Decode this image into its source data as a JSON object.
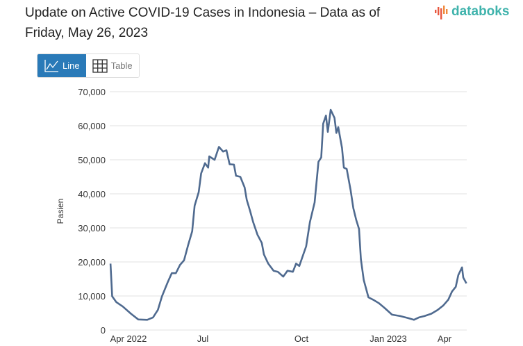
{
  "title": "Update on Active COVID-19 Cases in Indonesia – Data as of Friday, May 26, 2023",
  "logo": {
    "text": "databoks",
    "bar_color": "#e8573f",
    "text_color": "#3fb3ac"
  },
  "view_toggle": {
    "line_label": "Line",
    "line_icon": "line-chart-icon",
    "table_label": "Table",
    "table_icon": "table-grid-icon",
    "active": "Line",
    "active_color": "#2a7ab8"
  },
  "chart_data": {
    "type": "line",
    "ylabel": "Pasien",
    "ylim": [
      0,
      70000
    ],
    "yticks": [
      0,
      10000,
      20000,
      30000,
      40000,
      50000,
      60000,
      70000
    ],
    "ytick_labels": [
      "0",
      "10,000",
      "20,000",
      "30,000",
      "40,000",
      "50,000",
      "60,000",
      "70,000"
    ],
    "xticks": [
      {
        "date": "2022-04-01",
        "label": "Apr 2022"
      },
      {
        "date": "2022-07-01",
        "label": "Jul"
      },
      {
        "date": "2022-10-01",
        "label": "Oct"
      },
      {
        "date": "2023-01-01",
        "label": "Jan 2023"
      },
      {
        "date": "2023-04-01",
        "label": "Apr"
      }
    ],
    "grid": true,
    "line_color": "#4f6a8f",
    "points": [
      [
        "2022-03-10",
        19500
      ],
      [
        "2022-03-12",
        9900
      ],
      [
        "2022-03-17",
        8200
      ],
      [
        "2022-03-25",
        6900
      ],
      [
        "2022-04-04",
        4800
      ],
      [
        "2022-04-13",
        3100
      ],
      [
        "2022-04-24",
        3000
      ],
      [
        "2022-05-01",
        3700
      ],
      [
        "2022-05-07",
        5900
      ],
      [
        "2022-05-12",
        9900
      ],
      [
        "2022-05-19",
        14000
      ],
      [
        "2022-05-24",
        16700
      ],
      [
        "2022-05-29",
        16700
      ],
      [
        "2022-06-03",
        19100
      ],
      [
        "2022-06-08",
        20500
      ],
      [
        "2022-06-13",
        24900
      ],
      [
        "2022-06-18",
        29000
      ],
      [
        "2022-06-21",
        36500
      ],
      [
        "2022-06-26",
        40500
      ],
      [
        "2022-06-29",
        46000
      ],
      [
        "2022-07-03",
        49000
      ],
      [
        "2022-07-06",
        47700
      ],
      [
        "2022-07-07",
        51000
      ],
      [
        "2022-07-12",
        50000
      ],
      [
        "2022-07-16",
        53800
      ],
      [
        "2022-07-20",
        52400
      ],
      [
        "2022-07-23",
        52800
      ],
      [
        "2022-07-26",
        48700
      ],
      [
        "2022-07-30",
        48600
      ],
      [
        "2022-08-01",
        45300
      ],
      [
        "2022-08-05",
        45000
      ],
      [
        "2022-08-09",
        41900
      ],
      [
        "2022-08-11",
        38200
      ],
      [
        "2022-08-14",
        35100
      ],
      [
        "2022-08-17",
        31700
      ],
      [
        "2022-08-21",
        28000
      ],
      [
        "2022-08-25",
        25600
      ],
      [
        "2022-08-27",
        22200
      ],
      [
        "2022-08-31",
        19500
      ],
      [
        "2022-09-05",
        17400
      ],
      [
        "2022-09-09",
        17100
      ],
      [
        "2022-09-14",
        15700
      ],
      [
        "2022-09-18",
        17400
      ],
      [
        "2022-09-23",
        17100
      ],
      [
        "2022-09-26",
        19500
      ],
      [
        "2022-09-29",
        18800
      ],
      [
        "2022-10-03",
        22200
      ],
      [
        "2022-10-06",
        24600
      ],
      [
        "2022-10-10",
        31700
      ],
      [
        "2022-10-15",
        37500
      ],
      [
        "2022-10-19",
        49400
      ],
      [
        "2022-10-22",
        50700
      ],
      [
        "2022-10-24",
        60600
      ],
      [
        "2022-10-27",
        63000
      ],
      [
        "2022-10-29",
        58200
      ],
      [
        "2022-11-01",
        64700
      ],
      [
        "2022-11-05",
        62300
      ],
      [
        "2022-11-07",
        57900
      ],
      [
        "2022-11-09",
        59600
      ],
      [
        "2022-11-13",
        53500
      ],
      [
        "2022-11-15",
        47700
      ],
      [
        "2022-11-18",
        47300
      ],
      [
        "2022-11-22",
        41200
      ],
      [
        "2022-11-25",
        35800
      ],
      [
        "2022-11-28",
        32400
      ],
      [
        "2022-12-01",
        29700
      ],
      [
        "2022-12-03",
        20800
      ],
      [
        "2022-12-06",
        14700
      ],
      [
        "2022-12-11",
        9600
      ],
      [
        "2022-12-16",
        8900
      ],
      [
        "2022-12-22",
        7900
      ],
      [
        "2022-12-28",
        6500
      ],
      [
        "2023-01-07",
        4500
      ],
      [
        "2023-01-20",
        4100
      ],
      [
        "2023-02-02",
        3500
      ],
      [
        "2023-02-11",
        3000
      ],
      [
        "2023-02-19",
        3700
      ],
      [
        "2023-02-28",
        4100
      ],
      [
        "2023-03-11",
        4800
      ],
      [
        "2023-03-21",
        5900
      ],
      [
        "2023-03-30",
        7200
      ],
      [
        "2023-04-07",
        8900
      ],
      [
        "2023-04-13",
        11300
      ],
      [
        "2023-04-19",
        12700
      ],
      [
        "2023-04-23",
        16100
      ],
      [
        "2023-04-29",
        18400
      ],
      [
        "2023-05-01",
        15400
      ],
      [
        "2023-05-06",
        13700
      ]
    ]
  }
}
